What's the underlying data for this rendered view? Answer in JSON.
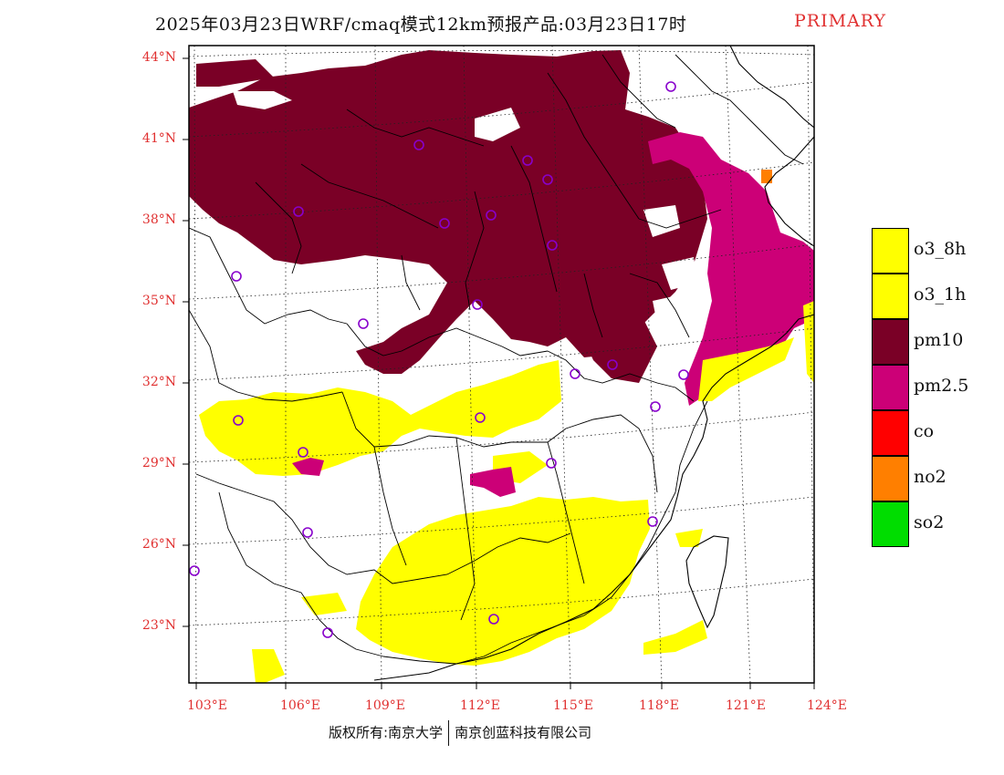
{
  "title": "2025年03月23日WRF/cmaq模式12km预报产品:03月23日17时",
  "title_tag": "PRIMARY",
  "colors": {
    "o3_8h": "#ffff00",
    "o3_1h": "#ffff00",
    "pm10": "#7a0026",
    "pm2.5": "#cc0077",
    "co": "#ff0000",
    "no2": "#ff7f00",
    "so2": "#00dd00",
    "site_marker": "#8800cc",
    "axis_label": "#e03030"
  },
  "lat_labels": [
    "44°N",
    "41°N",
    "38°N",
    "35°N",
    "32°N",
    "29°N",
    "26°N",
    "23°N"
  ],
  "lon_labels": [
    "103°E",
    "106°E",
    "109°E",
    "112°E",
    "115°E",
    "118°E",
    "121°E",
    "124°E"
  ],
  "legend": [
    {
      "label": "o3_8h",
      "color": "#ffff00"
    },
    {
      "label": "o3_1h",
      "color": "#ffff00"
    },
    {
      "label": "pm10",
      "color": "#7a0026"
    },
    {
      "label": "pm2.5",
      "color": "#cc0077"
    },
    {
      "label": "co",
      "color": "#ff0000"
    },
    {
      "label": "no2",
      "color": "#ff7f00"
    },
    {
      "label": "so2",
      "color": "#00dd00"
    }
  ],
  "footer": {
    "left": "版权所有:南京大学",
    "right": "南京创蓝科技有限公司"
  }
}
